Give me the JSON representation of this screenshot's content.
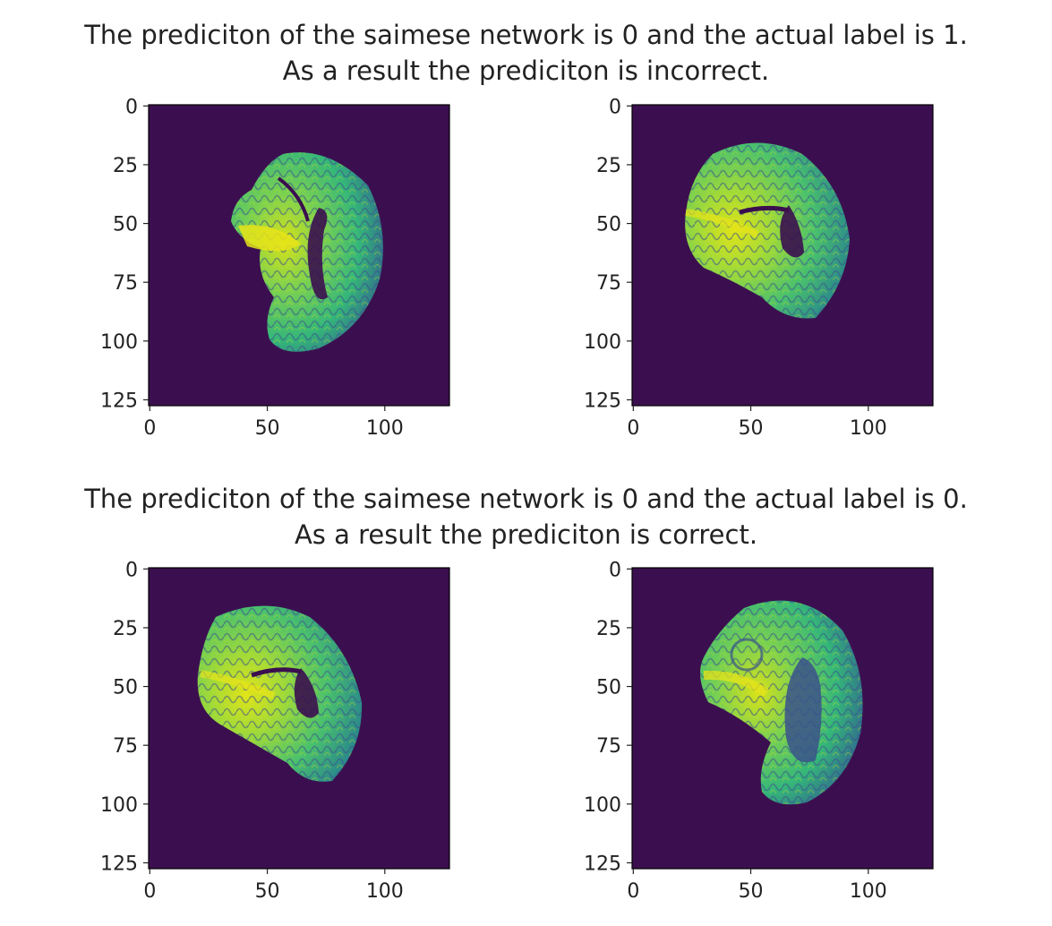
{
  "figure": {
    "rows": [
      {
        "title_line1": "The prediciton of the saimese network is 0 and the actual label is 1.",
        "title_line2": "As a result the prediciton is incorrect.",
        "prediction": 0,
        "actual_label": 1,
        "result": "incorrect"
      },
      {
        "title_line1": "The prediciton of the saimese network is 0 and the actual label is 0.",
        "title_line2": "As a result the prediciton is correct.",
        "prediction": 0,
        "actual_label": 0,
        "result": "correct"
      }
    ],
    "axes": {
      "x_ticks": [
        0,
        50,
        100
      ],
      "y_ticks": [
        0,
        25,
        50,
        75,
        100,
        125
      ],
      "image_size": 128
    },
    "images": [
      "brain-mri-slice-pair-1-left",
      "brain-mri-slice-pair-1-right",
      "brain-mri-slice-pair-2-left",
      "brain-mri-slice-pair-2-right"
    ],
    "colors": {
      "background": "#3b0f4f",
      "brain_low": "#30688e",
      "brain_mid": "#35b779",
      "brain_high": "#d8e219",
      "text": "#222222"
    }
  }
}
